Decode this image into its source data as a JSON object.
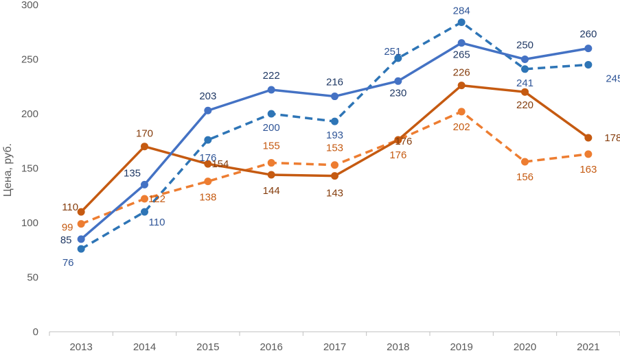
{
  "chart_data": {
    "type": "line",
    "title": "",
    "xlabel": "",
    "ylabel": "Цена, руб.",
    "ylim": [
      0,
      300
    ],
    "yticks": [
      "0",
      "50",
      "100",
      "150",
      "200",
      "250",
      "300"
    ],
    "categories": [
      "2013",
      "2014",
      "2015",
      "2016",
      "2017",
      "2018",
      "2019",
      "2020",
      "2021"
    ],
    "grid": false,
    "legend": "none",
    "series": [
      {
        "name": "blue-solid",
        "color": "#4472c4",
        "label_color": "#1f3864",
        "style": "solid",
        "values": [
          85,
          135,
          203,
          222,
          216,
          230,
          265,
          250,
          260
        ],
        "labels": [
          "85",
          "135",
          "203",
          "222",
          "216",
          "230",
          "265",
          "250",
          "260"
        ]
      },
      {
        "name": "blue-dashed",
        "color": "#2e75b6",
        "label_color": "#2f5597",
        "style": "dashed",
        "values": [
          76,
          110,
          176,
          200,
          193,
          251,
          284,
          241,
          245
        ],
        "labels": [
          "76",
          "110",
          "176",
          "200",
          "193",
          "251",
          "284",
          "241",
          "245"
        ]
      },
      {
        "name": "orange-solid",
        "color": "#c55a11",
        "label_color": "#843c0c",
        "style": "solid",
        "values": [
          110,
          170,
          154,
          144,
          143,
          176,
          226,
          220,
          178
        ],
        "labels": [
          "110",
          "170",
          "154",
          "144",
          "143",
          "176",
          "226",
          "220",
          "178"
        ]
      },
      {
        "name": "orange-dashed",
        "color": "#ed7d31",
        "label_color": "#c55a11",
        "style": "dashed",
        "values": [
          99,
          122,
          138,
          155,
          153,
          176,
          202,
          156,
          163
        ],
        "labels": [
          "99",
          "122",
          "138",
          "155",
          "153",
          "176",
          "202",
          "156",
          "163"
        ]
      }
    ]
  }
}
